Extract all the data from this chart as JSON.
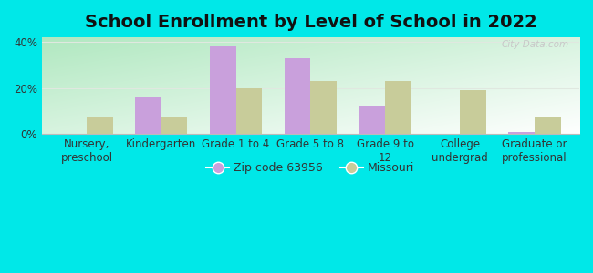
{
  "title": "School Enrollment by Level of School in 2022",
  "categories": [
    "Nursery,\npreschool",
    "Kindergarten",
    "Grade 1 to 4",
    "Grade 5 to 8",
    "Grade 9 to\n12",
    "College\nundergrad",
    "Graduate or\nprofessional"
  ],
  "zip_values": [
    0,
    16,
    38,
    33,
    12,
    0,
    1
  ],
  "mo_values": [
    7,
    7,
    20,
    23,
    23,
    19,
    7
  ],
  "zip_color": "#c9a0dc",
  "mo_color": "#c8cc9a",
  "bg_color": "#00e8e8",
  "plot_bg_top_left": "#b0e8c0",
  "plot_bg_bottom_right": "#ffffff",
  "zip_label": "Zip code 63956",
  "mo_label": "Missouri",
  "ylim": [
    0,
    42
  ],
  "yticks": [
    0,
    20,
    40
  ],
  "ytick_labels": [
    "0%",
    "20%",
    "40%"
  ],
  "watermark": "City-Data.com",
  "bar_width": 0.35,
  "title_fontsize": 14,
  "axis_fontsize": 8.5,
  "legend_fontsize": 9,
  "grid_color": "#e0e8e0"
}
